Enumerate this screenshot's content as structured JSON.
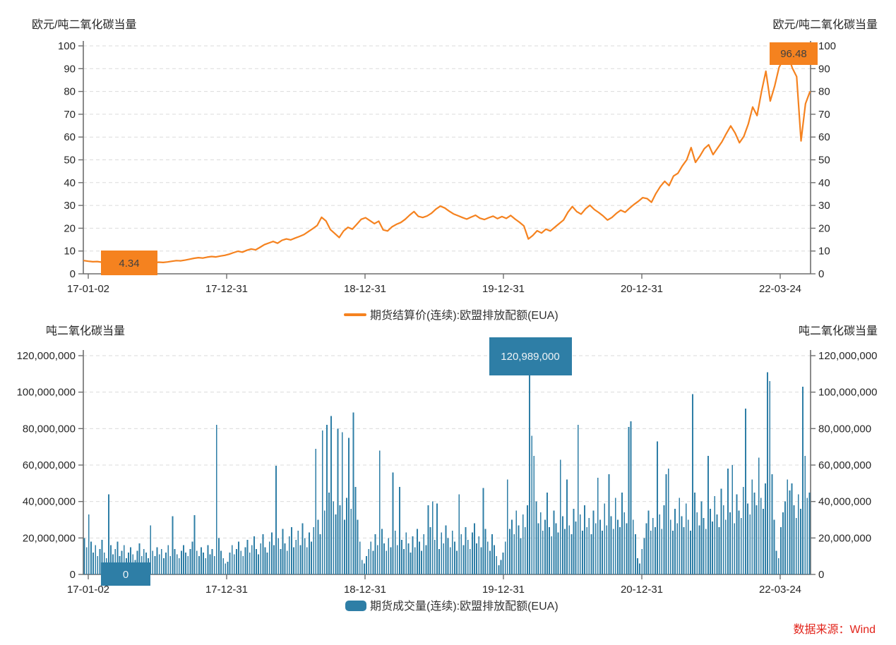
{
  "source": "数据来源：Wind",
  "source_color": "#E2231A",
  "chart_data": [
    {
      "type": "line",
      "unit_label_left": "欧元/吨二氧化碳当量",
      "unit_label_right": "欧元/吨二氧化碳当量",
      "legend": "期货结算价(连续):欧盟排放配额(EUA)",
      "line_color": "#F5821F",
      "ylim": [
        0,
        100
      ],
      "y_ticks": [
        0,
        10,
        20,
        30,
        40,
        50,
        60,
        70,
        80,
        90,
        100
      ],
      "x_tick_labels": [
        "17-01-02",
        "17-12-31",
        "18-12-31",
        "19-12-31",
        "20-12-31",
        "22-03-24"
      ],
      "min_label": "4.34",
      "max_label": "96.48",
      "series": [
        {
          "name": "期货结算价(连续):欧盟排放配额(EUA)",
          "values": [
            5.8,
            5.5,
            5.3,
            5.4,
            5.1,
            5.0,
            5.2,
            4.9,
            4.7,
            4.8,
            4.6,
            4.4,
            4.34,
            4.6,
            4.8,
            4.7,
            4.9,
            5.1,
            5.0,
            5.2,
            5.5,
            5.8,
            5.7,
            6.0,
            6.4,
            6.8,
            7.1,
            6.9,
            7.3,
            7.6,
            7.4,
            7.8,
            8.1,
            8.6,
            9.3,
            9.9,
            9.5,
            10.3,
            10.9,
            10.5,
            11.6,
            12.8,
            13.5,
            14.2,
            13.4,
            14.7,
            15.3,
            14.9,
            15.7,
            16.4,
            17.2,
            18.5,
            19.8,
            21.2,
            24.8,
            23.2,
            19.4,
            17.7,
            15.9,
            18.8,
            20.4,
            19.6,
            21.7,
            23.9,
            24.6,
            23.3,
            22.0,
            23.1,
            19.3,
            18.8,
            20.6,
            21.7,
            22.5,
            23.9,
            25.7,
            27.3,
            25.2,
            24.7,
            25.4,
            26.6,
            28.4,
            29.7,
            28.9,
            27.5,
            26.3,
            25.5,
            24.7,
            24.0,
            24.9,
            25.7,
            24.4,
            23.8,
            24.6,
            25.3,
            24.2,
            25.1,
            24.3,
            25.6,
            24.0,
            22.6,
            21.0,
            15.3,
            16.8,
            18.9,
            17.9,
            19.6,
            18.8,
            20.4,
            22.0,
            23.6,
            27.0,
            29.5,
            27.3,
            26.2,
            28.5,
            30.1,
            28.2,
            26.9,
            25.4,
            23.6,
            24.7,
            26.5,
            27.9,
            27.0,
            28.8,
            30.4,
            31.8,
            33.4,
            33.0,
            31.4,
            35.2,
            38.3,
            40.6,
            38.7,
            42.9,
            44.1,
            47.3,
            50.0,
            55.4,
            48.9,
            51.6,
            54.9,
            56.6,
            52.3,
            55.1,
            57.9,
            61.5,
            64.9,
            61.8,
            57.5,
            60.3,
            65.7,
            73.2,
            69.4,
            79.9,
            88.9,
            75.8,
            82.4,
            90.6,
            94.2,
            96.48,
            90.3,
            86.5,
            58.3,
            74.6,
            79.8
          ]
        }
      ]
    },
    {
      "type": "bar",
      "unit_label_left": "吨二氧化碳当量",
      "unit_label_right": "吨二氧化碳当量",
      "legend": "期货成交量(连续):欧盟排放配额(EUA)",
      "bar_color": "#2E7EA6",
      "ylim_millions": [
        0,
        120
      ],
      "y_tick_labels": [
        "0",
        "20,000,000",
        "40,000,000",
        "60,000,000",
        "80,000,000",
        "100,000,000",
        "120,000,000"
      ],
      "x_tick_labels": [
        "17-01-02",
        "17-12-31",
        "18-12-31",
        "19-12-31",
        "20-12-31",
        "22-03-24"
      ],
      "min_label": "0",
      "max_label": "120,989,000",
      "values_millions": [
        20,
        15,
        33,
        18,
        12,
        16,
        10,
        14,
        19,
        12,
        9,
        44,
        16,
        11,
        14,
        18,
        10,
        13,
        16,
        9,
        12,
        15,
        11,
        8,
        13,
        17,
        10,
        14,
        12,
        9,
        27,
        13,
        10,
        15,
        11,
        14,
        9,
        12,
        16,
        10,
        32,
        14,
        11,
        9,
        13,
        16,
        12,
        10,
        14,
        18,
        32.5,
        13,
        10,
        15,
        12,
        9,
        16,
        11,
        14,
        10,
        82,
        20,
        13,
        9,
        6,
        7,
        12,
        16,
        11,
        14,
        18,
        13,
        10,
        15,
        19,
        12,
        16,
        21,
        14,
        11,
        17,
        22,
        15,
        12,
        18,
        23,
        16,
        59.6,
        20,
        14,
        25,
        17,
        13,
        21,
        26,
        15,
        19,
        24,
        16,
        28,
        20,
        15,
        23,
        18,
        26,
        68.9,
        30,
        22,
        79,
        35,
        82,
        45,
        87,
        40,
        33,
        80,
        38,
        78,
        30,
        42,
        75,
        36,
        88.9,
        48,
        30,
        18,
        8,
        6,
        10,
        14,
        18,
        13,
        22,
        16,
        68,
        25,
        17,
        13,
        20,
        15,
        56,
        24,
        16,
        48,
        19,
        14,
        23,
        17,
        12,
        21,
        15,
        25,
        18,
        13,
        22,
        16,
        38,
        26,
        40,
        19,
        39,
        14,
        23,
        17,
        27,
        20,
        15,
        24,
        18,
        13,
        44,
        22,
        16,
        26,
        19,
        14,
        23,
        28,
        17,
        21,
        15,
        47.5,
        25,
        18,
        13,
        22,
        16,
        10,
        5,
        8,
        12,
        18,
        52,
        25,
        30,
        22,
        35,
        27,
        20,
        33,
        26,
        38,
        120.989,
        76,
        65,
        40,
        28,
        34,
        24,
        30,
        45,
        26,
        21,
        35,
        28,
        23,
        63,
        32,
        25,
        52,
        27,
        22,
        36,
        29,
        82,
        33,
        24,
        38,
        26,
        31,
        22,
        35,
        28,
        53,
        30,
        24,
        39,
        27,
        55,
        32,
        25,
        42,
        30,
        26,
        45,
        34,
        28,
        81,
        84,
        30,
        22,
        9,
        6,
        14,
        20,
        28,
        35,
        24,
        31,
        26,
        73,
        33,
        25,
        38,
        55,
        58,
        30,
        24,
        36,
        28,
        42,
        32,
        26,
        39,
        30,
        24,
        99,
        45,
        34,
        27,
        40,
        31,
        25,
        65,
        36,
        29,
        43,
        33,
        26,
        47,
        38,
        30,
        58,
        34,
        60,
        28,
        44,
        35,
        31,
        48,
        91,
        39,
        33,
        52,
        45,
        38,
        64,
        42,
        36,
        50,
        111,
        106,
        55,
        30,
        13,
        9,
        26,
        34,
        40,
        52,
        46,
        50,
        38,
        31,
        44,
        36,
        103,
        65,
        42,
        45
      ]
    }
  ]
}
